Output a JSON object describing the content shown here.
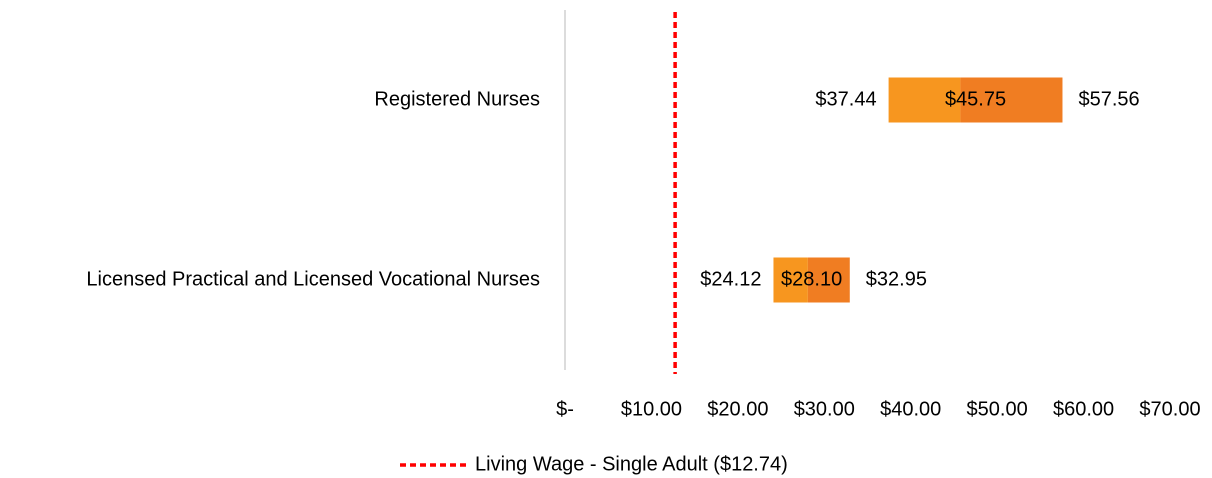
{
  "chart_data": {
    "type": "floating-bar",
    "categories": [
      "Registered Nurses",
      "Licensed Practical and Licensed Vocational Nurses"
    ],
    "low": {
      "color": "#f7961f",
      "values": [
        37.44,
        24.12
      ],
      "value_labels": [
        "$37.44",
        "$24.12"
      ]
    },
    "median": {
      "color": "#f07d22",
      "values": [
        45.75,
        28.1
      ],
      "value_labels": [
        "$45.75",
        "$28.10"
      ]
    },
    "high": {
      "values": [
        57.56,
        32.95
      ],
      "value_labels": [
        "$57.56",
        "$32.95"
      ]
    },
    "xlim": [
      0,
      70
    ],
    "xticks": [
      {
        "value": 0,
        "label": "$-"
      },
      {
        "value": 10,
        "label": "$10.00"
      },
      {
        "value": 20,
        "label": "$20.00"
      },
      {
        "value": 30,
        "label": "$30.00"
      },
      {
        "value": 40,
        "label": "$40.00"
      },
      {
        "value": 50,
        "label": "$50.00"
      },
      {
        "value": 60,
        "label": "$60.00"
      },
      {
        "value": 70,
        "label": "$70.00"
      }
    ],
    "reference_line": {
      "name": "Living Wage - Single Adult ($12.74)",
      "value": 12.74,
      "color": "#ff0000",
      "dashed": true
    },
    "legend": "bottom"
  }
}
